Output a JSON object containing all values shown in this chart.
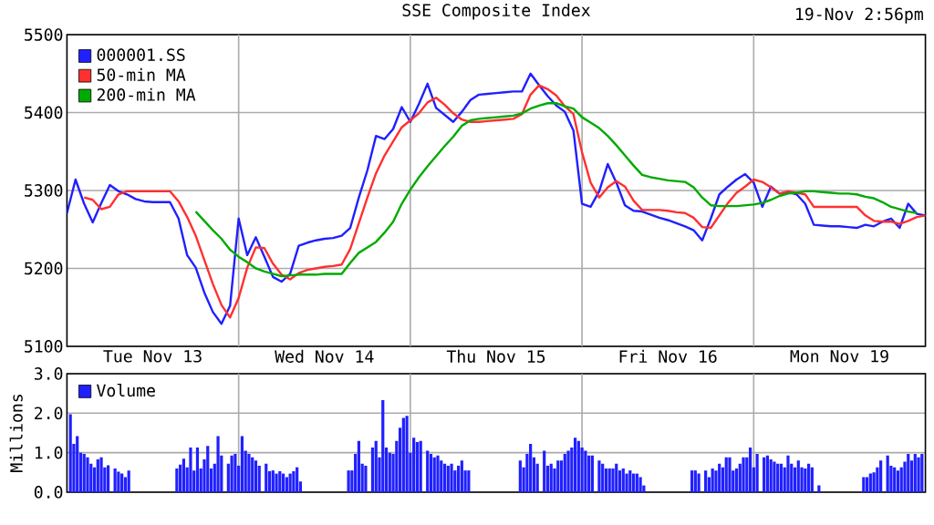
{
  "chart_data": [
    {
      "type": "line",
      "title": "SSE Composite Index",
      "annotations": [
        "19-Nov 2:56pm"
      ],
      "categories": [
        null,
        null,
        null,
        null,
        null,
        null,
        null,
        null,
        null,
        null,
        "Tue Nov 13",
        null,
        null,
        null,
        null,
        null,
        null,
        null,
        null,
        null,
        null,
        null,
        null,
        null,
        null,
        null,
        null,
        null,
        null,
        null,
        "Wed Nov 14",
        null,
        null,
        null,
        null,
        null,
        null,
        null,
        null,
        null,
        null,
        null,
        null,
        null,
        null,
        null,
        null,
        null,
        null,
        null,
        "Thu Nov 15",
        null,
        null,
        null,
        null,
        null,
        null,
        null,
        null,
        null,
        null,
        null,
        null,
        null,
        null,
        null,
        null,
        null,
        null,
        null,
        "Fri Nov 16",
        null,
        null,
        null,
        null,
        null,
        null,
        null,
        null,
        null,
        null,
        null,
        null,
        null,
        null,
        null,
        null,
        null,
        null,
        null,
        "Mon Nov 19",
        null,
        null,
        null,
        null,
        null,
        null,
        null,
        null,
        null,
        null
      ],
      "ylim": [
        5100,
        5500
      ],
      "yticks": [
        5100,
        5200,
        5300,
        5400,
        5500
      ],
      "grid": true,
      "legend": "top left",
      "series": [
        {
          "name": "000001.SS",
          "color": "#2020ff",
          "values": [
            5271,
            5314,
            5283,
            5259,
            5284,
            5307,
            5299,
            5295,
            5289,
            5286,
            5285,
            5285,
            5285,
            5264,
            5217,
            5201,
            5169,
            5144,
            5129,
            5152,
            5264,
            5217,
            5240,
            5215,
            5189,
            5183,
            5193,
            5229,
            5233,
            5236,
            5238,
            5239,
            5242,
            5252,
            5291,
            5326,
            5370,
            5366,
            5379,
            5407,
            5388,
            5411,
            5437,
            5406,
            5397,
            5388,
            5401,
            5416,
            5423,
            5424,
            5425,
            5426,
            5427,
            5427,
            5450,
            5435,
            5421,
            5409,
            5401,
            5377,
            5283,
            5279,
            5299,
            5334,
            5310,
            5281,
            5274,
            5273,
            5269,
            5265,
            5262,
            5258,
            5254,
            5249,
            5236,
            5264,
            5295,
            5305,
            5314,
            5321,
            5310,
            5279,
            5305,
            5296,
            5298,
            5295,
            5283,
            5256,
            5255,
            5254,
            5254,
            5253,
            5252,
            5256,
            5254,
            5260,
            5264,
            5252,
            5283,
            5270,
            5268
          ]
        },
        {
          "name": "50-min MA",
          "color": "#ff3030",
          "values": [
            null,
            null,
            5291,
            5288,
            5276,
            5279,
            5295,
            5299,
            5299,
            5299,
            5299,
            5299,
            5299,
            5286,
            5266,
            5242,
            5211,
            5180,
            5153,
            5137,
            5162,
            5201,
            5227,
            5226,
            5206,
            5192,
            5186,
            5194,
            5198,
            5200,
            5202,
            5203,
            5205,
            5225,
            5258,
            5291,
            5322,
            5345,
            5363,
            5381,
            5390,
            5399,
            5413,
            5419,
            5410,
            5399,
            5391,
            5388,
            5388,
            5389,
            5390,
            5391,
            5392,
            5398,
            5423,
            5435,
            5430,
            5422,
            5408,
            5398,
            5349,
            5310,
            5291,
            5304,
            5312,
            5305,
            5287,
            5275,
            5275,
            5275,
            5274,
            5272,
            5271,
            5265,
            5253,
            5252,
            5268,
            5284,
            5297,
            5305,
            5314,
            5311,
            5304,
            5296,
            5299,
            5297,
            5295,
            5279,
            5279,
            5279,
            5279,
            5279,
            5279,
            5268,
            5261,
            5260,
            5260,
            5257,
            5261,
            5266,
            5268
          ]
        },
        {
          "name": "200-min MA",
          "color": "#00aa00",
          "values": [
            null,
            null,
            null,
            null,
            null,
            null,
            null,
            null,
            null,
            null,
            null,
            null,
            null,
            null,
            null,
            5273,
            5261,
            5249,
            5238,
            5224,
            5215,
            5208,
            5200,
            5196,
            5193,
            5190,
            5191,
            5192,
            5192,
            5192,
            5193,
            5193,
            5193,
            5207,
            5220,
            5227,
            5234,
            5246,
            5260,
            5283,
            5301,
            5317,
            5331,
            5344,
            5357,
            5369,
            5383,
            5390,
            5392,
            5393,
            5394,
            5395,
            5396,
            5399,
            5405,
            5409,
            5412,
            5412,
            5408,
            5405,
            5394,
            5387,
            5380,
            5370,
            5358,
            5345,
            5332,
            5320,
            5317,
            5315,
            5313,
            5312,
            5311,
            5304,
            5291,
            5281,
            5280,
            5280,
            5280,
            5281,
            5282,
            5284,
            5288,
            5293,
            5296,
            5297,
            5299,
            5299,
            5298,
            5297,
            5296,
            5296,
            5295,
            5292,
            5290,
            5285,
            5279,
            5276,
            5273,
            5271,
            null
          ]
        }
      ]
    },
    {
      "type": "bar",
      "ylabel": "Millions",
      "categories": [
        null,
        null,
        null,
        null,
        null,
        null,
        null,
        null,
        null,
        null,
        null,
        null,
        null,
        null,
        null,
        null,
        null,
        null,
        null,
        null,
        null,
        null,
        null,
        null,
        null,
        null,
        null,
        null,
        null,
        null,
        null,
        null,
        null,
        null,
        null,
        null,
        null,
        null,
        null,
        null,
        null,
        null,
        null,
        null,
        null,
        null,
        null,
        null,
        null,
        null,
        null,
        null,
        null,
        null,
        null,
        null,
        null,
        null,
        null,
        null,
        null,
        null,
        null,
        null,
        null,
        null,
        null,
        null,
        null,
        null,
        null,
        null,
        null,
        null,
        null,
        null,
        null,
        null,
        null,
        null,
        null,
        null,
        null,
        null,
        null,
        null,
        null,
        null,
        null,
        null,
        null,
        null,
        null,
        null,
        null,
        null,
        null,
        null,
        null,
        null,
        null,
        null,
        null,
        null,
        null,
        null,
        null,
        null,
        null,
        null,
        null,
        null,
        null,
        null,
        null,
        null,
        null,
        null,
        null,
        null,
        null,
        null,
        null,
        null,
        null,
        null,
        null,
        null,
        null,
        null,
        null,
        null,
        null,
        null,
        null,
        null,
        null,
        null,
        null,
        null,
        null,
        null,
        null,
        null,
        null,
        null,
        null,
        null,
        null,
        null,
        null,
        null,
        null,
        null,
        null,
        null,
        null,
        null,
        null,
        null,
        null,
        null,
        null,
        null,
        null,
        null,
        null,
        null,
        null,
        null,
        null,
        null,
        null,
        null,
        null,
        null,
        null,
        null,
        null,
        null,
        null,
        null,
        null,
        null,
        null,
        null,
        null,
        null,
        null,
        null,
        null,
        null,
        null,
        null,
        null,
        null,
        null,
        null,
        null,
        null,
        null,
        null,
        null,
        null,
        null,
        null,
        null,
        null,
        null,
        null,
        null,
        null,
        null,
        null,
        null,
        null,
        null,
        null,
        null,
        null,
        null,
        null,
        null,
        null,
        null,
        null,
        null,
        null,
        null,
        null,
        null,
        null,
        null,
        null,
        null,
        null,
        null,
        null,
        null,
        null,
        null,
        null,
        null,
        null,
        null,
        null,
        null,
        null,
        null,
        null,
        null
      ],
      "ylim": [
        0,
        3
      ],
      "yticks": [
        {
          "value": 0,
          "label": "0.0"
        },
        {
          "value": 1,
          "label": "1.0"
        },
        {
          "value": 2,
          "label": "2.0"
        },
        {
          "value": 3,
          "label": "3.0"
        }
      ],
      "tick_labels": "y",
      "grid": true,
      "legend": "top left",
      "series": [
        {
          "name": "Volume",
          "color": "#2020ff",
          "values": [
            null,
            1.97,
            1.22,
            1.42,
            1.0,
            0.97,
            0.88,
            0.72,
            0.63,
            0.83,
            0.88,
            0.63,
            0.68,
            null,
            0.6,
            0.52,
            0.47,
            0.38,
            0.55,
            null,
            null,
            null,
            null,
            null,
            null,
            null,
            null,
            null,
            null,
            null,
            null,
            null,
            0.6,
            0.7,
            0.85,
            0.63,
            1.13,
            0.55,
            1.13,
            0.6,
            0.83,
            1.17,
            0.6,
            0.72,
            1.42,
            0.93,
            null,
            0.72,
            0.93,
            0.97,
            0.67,
            1.42,
            1.05,
            0.97,
            0.88,
            0.8,
            0.67,
            null,
            0.72,
            0.53,
            0.55,
            0.47,
            0.53,
            0.47,
            0.38,
            0.47,
            0.53,
            0.63,
            0.27,
            null,
            null,
            null,
            null,
            null,
            null,
            null,
            null,
            null,
            null,
            null,
            null,
            null,
            0.55,
            0.55,
            0.97,
            1.3,
            0.72,
            0.67,
            null,
            1.13,
            1.3,
            0.88,
            2.33,
            1.13,
            1.0,
            0.97,
            1.3,
            1.63,
            1.88,
            1.93,
            1.0,
            1.38,
            1.27,
            1.3,
            null,
            1.05,
            0.97,
            0.88,
            0.93,
            0.8,
            0.72,
            0.67,
            0.72,
            0.55,
            0.67,
            0.8,
            0.55,
            0.55,
            null,
            null,
            null,
            null,
            null,
            null,
            null,
            null,
            null,
            null,
            null,
            null,
            null,
            null,
            0.8,
            0.63,
            0.97,
            1.22,
            0.88,
            0.72,
            null,
            1.05,
            0.67,
            0.72,
            0.6,
            0.8,
            0.8,
            0.97,
            1.05,
            1.13,
            1.38,
            1.3,
            1.13,
            1.05,
            0.93,
            0.93,
            null,
            0.8,
            0.72,
            0.6,
            0.6,
            0.6,
            0.72,
            0.55,
            0.6,
            0.47,
            0.55,
            0.47,
            0.47,
            0.38,
            0.17,
            null,
            null,
            null,
            null,
            null,
            null,
            null,
            null,
            null,
            null,
            null,
            null,
            null,
            0.55,
            0.55,
            0.47,
            null,
            0.55,
            0.38,
            0.6,
            0.55,
            0.72,
            0.63,
            0.88,
            0.88,
            0.55,
            0.6,
            0.72,
            0.88,
            0.88,
            1.13,
            0.63,
            0.97,
            null,
            0.88,
            0.93,
            0.83,
            0.77,
            0.72,
            0.72,
            0.63,
            0.93,
            0.72,
            0.63,
            0.8,
            0.63,
            0.6,
            0.72,
            0.63,
            null,
            0.17,
            null,
            null,
            null,
            null,
            null,
            null,
            null,
            null,
            null,
            null,
            null,
            null,
            0.38,
            0.38,
            0.47,
            0.5,
            0.63,
            0.8,
            null,
            0.93,
            0.67,
            0.63,
            0.55,
            0.63,
            0.77,
            0.97,
            0.8,
            0.97,
            0.88,
            0.97,
            null
          ]
        }
      ]
    }
  ]
}
